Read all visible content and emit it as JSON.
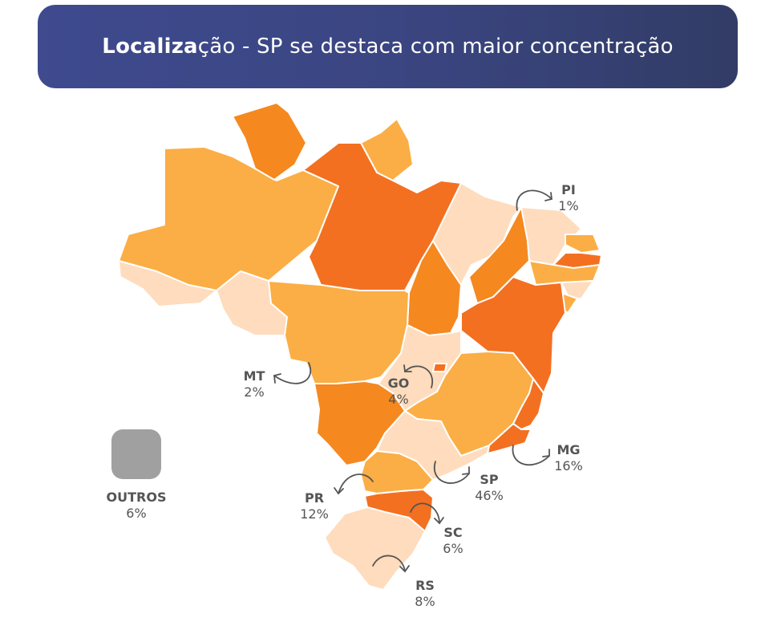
{
  "header": {
    "title_bold": "Localiza",
    "title_rest": "ção - SP se destaca com maior concentração"
  },
  "legend": {
    "others_label": "OUTROS",
    "others_value": "6%",
    "others_color": "#a0a0a0"
  },
  "colors": {
    "dark": "#f37021",
    "medium": "#f5881f",
    "light": "#fbae45",
    "pale": "#fedcbd"
  },
  "labels": {
    "pi": {
      "code": "PI",
      "value": "1%"
    },
    "mt": {
      "code": "MT",
      "value": "2%"
    },
    "go": {
      "code": "GO",
      "value": "4%"
    },
    "mg": {
      "code": "MG",
      "value": "16%"
    },
    "sp": {
      "code": "SP",
      "value": "46%"
    },
    "pr": {
      "code": "PR",
      "value": "12%"
    },
    "sc": {
      "code": "SC",
      "value": "6%"
    },
    "rs": {
      "code": "RS",
      "value": "8%"
    }
  }
}
